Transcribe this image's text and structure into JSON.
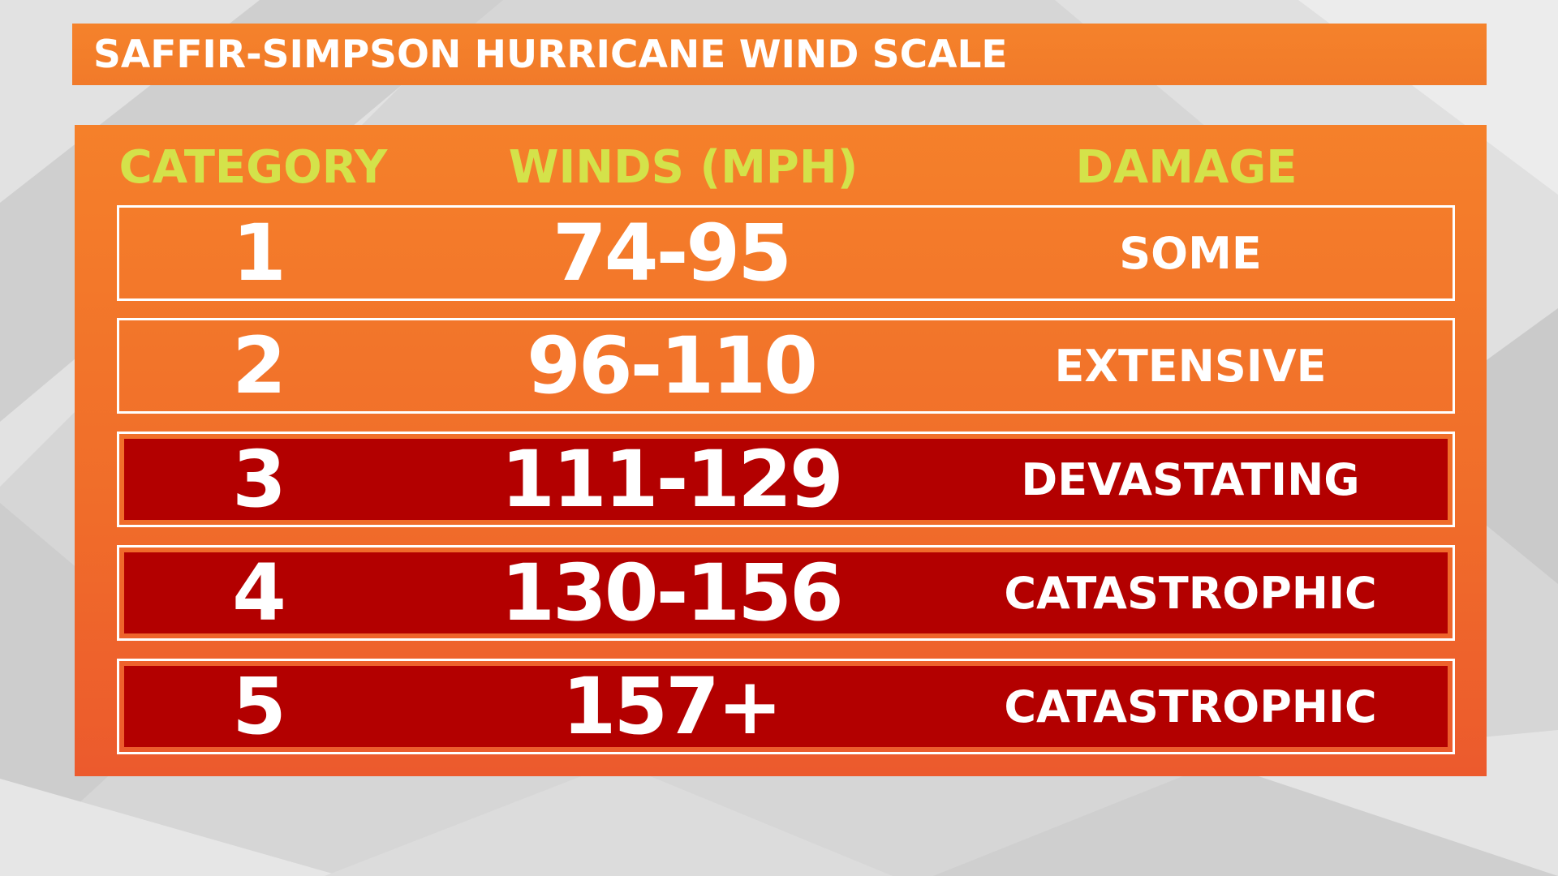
{
  "title": "SAFFIR-SIMPSON HURRICANE WIND SCALE",
  "headers": {
    "category": "CATEGORY",
    "winds": "WINDS (MPH)",
    "damage": "DAMAGE"
  },
  "rows": [
    {
      "category": "1",
      "winds": "74-95",
      "damage": "SOME",
      "severe": false
    },
    {
      "category": "2",
      "winds": "96-110",
      "damage": "EXTENSIVE",
      "severe": false
    },
    {
      "category": "3",
      "winds": "111-129",
      "damage": "DEVASTATING",
      "severe": true
    },
    {
      "category": "4",
      "winds": "130-156",
      "damage": "CATASTROPHIC",
      "severe": true
    },
    {
      "category": "5",
      "winds": "157+",
      "damage": "CATASTROPHIC",
      "severe": true
    }
  ],
  "colors": {
    "header_text": "#d4e24a",
    "panel_orange": "#f17a2a",
    "severe_red": "#b30000",
    "row_text": "#ffffff",
    "background_gray": "#d9d9d9"
  }
}
